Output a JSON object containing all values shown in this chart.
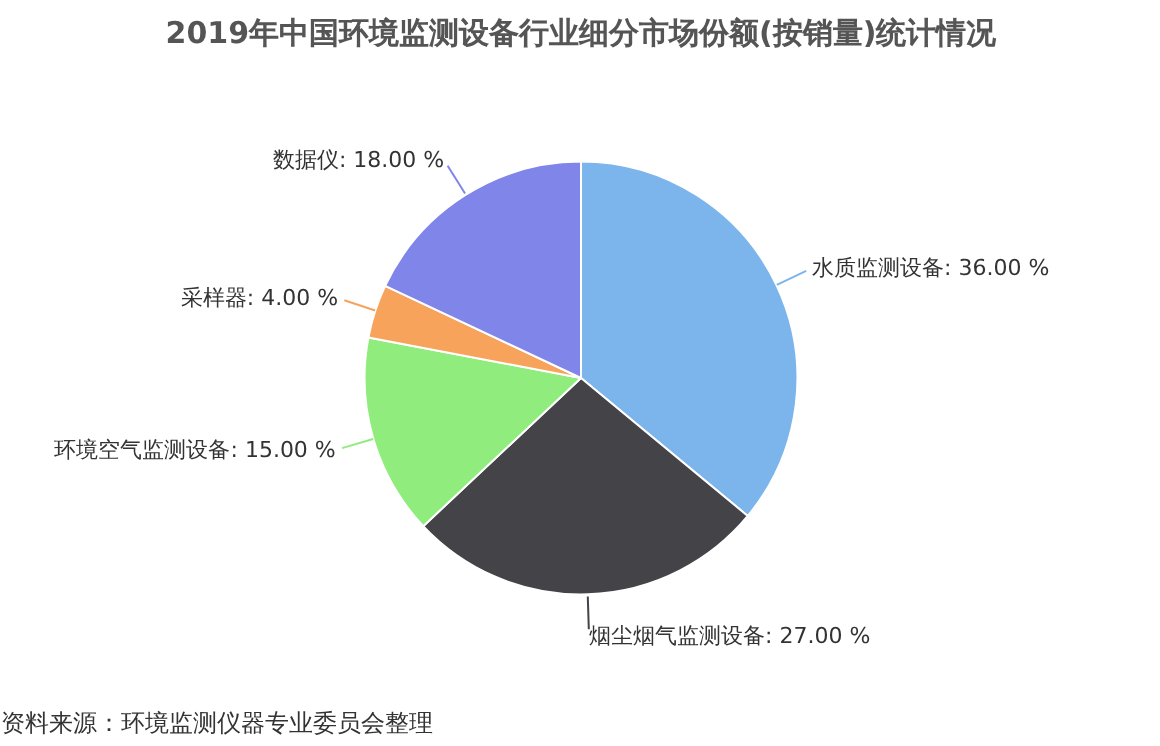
{
  "chart_data": {
    "type": "pie",
    "title": "2019年中国环境监测设备行业细分市场份额(按销量)统计情况",
    "categories": [
      "水质监测设备",
      "烟尘烟气监测设备",
      "环境空气监测设备",
      "采样器",
      "数据仪"
    ],
    "values": [
      36,
      27,
      15,
      4,
      18
    ],
    "value_labels": [
      "36.00 %",
      "27.00 %",
      "15.00 %",
      "4.00 %",
      "18.00 %"
    ],
    "colors": [
      "#7cb5ec",
      "#434348",
      "#90ed7d",
      "#f7a35c",
      "#8085e9"
    ],
    "legend": false,
    "annotations": [
      "资料来源：环境监测仪器专业委员会整理"
    ]
  }
}
